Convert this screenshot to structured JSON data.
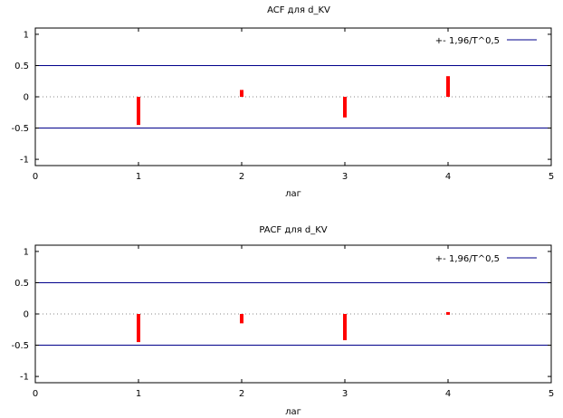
{
  "chart_data": [
    {
      "type": "bar",
      "title": "ACF для d_KV",
      "xlabel": "лаг",
      "ylabel": "",
      "xlim": [
        0,
        5
      ],
      "ylim": [
        -1.1,
        1.1
      ],
      "x_ticks": [
        "0",
        "1",
        "2",
        "3",
        "4",
        "5"
      ],
      "y_ticks": [
        "1",
        "0.5",
        "0",
        "-0.5",
        "-1"
      ],
      "legend": {
        "label": "+- 1,96/T^0,5",
        "placement": "top-right"
      },
      "confidence_band": 0.5,
      "bar_color": "#ff0000",
      "band_color": "#00008b",
      "x": [
        1,
        2,
        3,
        4
      ],
      "values": [
        -0.45,
        0.11,
        -0.33,
        0.33
      ]
    },
    {
      "type": "bar",
      "title": "PACF для d_KV",
      "xlabel": "лаг",
      "ylabel": "",
      "xlim": [
        0,
        5
      ],
      "ylim": [
        -1.1,
        1.1
      ],
      "x_ticks": [
        "0",
        "1",
        "2",
        "3",
        "4",
        "5"
      ],
      "y_ticks": [
        "1",
        "0.5",
        "0",
        "-0.5",
        "-1"
      ],
      "legend": {
        "label": "+- 1,96/T^0,5",
        "placement": "top-right"
      },
      "confidence_band": 0.5,
      "bar_color": "#ff0000",
      "band_color": "#00008b",
      "x": [
        1,
        2,
        3,
        4
      ],
      "values": [
        -0.45,
        -0.15,
        -0.42,
        0.03
      ]
    }
  ]
}
